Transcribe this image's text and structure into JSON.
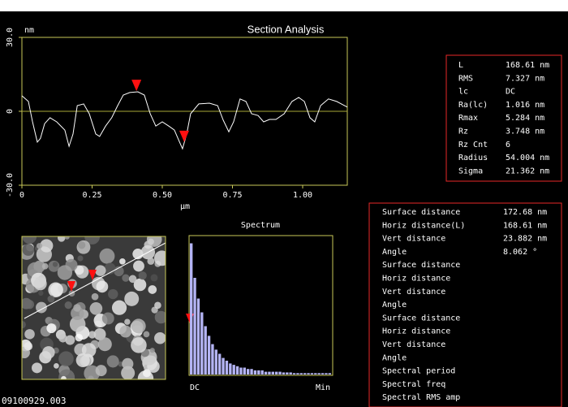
{
  "chart_data": [
    {
      "type": "line",
      "title": "Section Analysis",
      "y_unit": "nm",
      "x_label": "µm",
      "color": "#ffffff",
      "zero_line_color": "#a8a838",
      "x": [
        0,
        0.023,
        0.038,
        0.055,
        0.066,
        0.081,
        0.1,
        0.124,
        0.153,
        0.168,
        0.182,
        0.197,
        0.22,
        0.24,
        0.263,
        0.277,
        0.298,
        0.32,
        0.341,
        0.361,
        0.384,
        0.413,
        0.436,
        0.457,
        0.477,
        0.5,
        0.523,
        0.543,
        0.558,
        0.572,
        0.587,
        0.601,
        0.63,
        0.668,
        0.697,
        0.717,
        0.737,
        0.754,
        0.777,
        0.798,
        0.818,
        0.841,
        0.861,
        0.882,
        0.905,
        0.934,
        0.962,
        0.986,
        1.006,
        1.026,
        1.043,
        1.064,
        1.092,
        1.121,
        1.159
      ],
      "values": [
        6.3,
        4,
        -4.3,
        -12.5,
        -11,
        -5,
        -2.6,
        -4.3,
        -7.6,
        -14.2,
        -9.2,
        2.3,
        3,
        -1,
        -9.2,
        -10.2,
        -6,
        -2.6,
        2.3,
        6.6,
        7.6,
        7.9,
        6.6,
        -1,
        -6,
        -4.3,
        -6,
        -7.6,
        -11.6,
        -15.2,
        -9.2,
        -1,
        3,
        3.3,
        2.3,
        -3.6,
        -8.3,
        -4.3,
        5,
        4,
        -1,
        -1.7,
        -4.3,
        -3.3,
        -3.3,
        -1,
        4,
        5.6,
        4,
        -2.6,
        -4.3,
        2.3,
        5,
        4,
        1.7
      ],
      "cursors": {
        "x": [
          0.408,
          0.578
        ],
        "values": [
          8.2,
          -12.5
        ],
        "color": "#ff1010"
      },
      "xlim": [
        0,
        1.159
      ],
      "ylim": [
        -30,
        30
      ],
      "xticks": [
        0,
        0.25,
        {
          "value": 0.5,
          "label": "0.50"
        },
        0.75,
        {
          "value": 1,
          "label": "1.00"
        }
      ],
      "yticks": [
        {
          "value": -30,
          "label": "-30.0"
        },
        0,
        {
          "value": 30,
          "label": "30.0"
        }
      ]
    },
    {
      "type": "bar",
      "title": "Spectrum",
      "x_start_label": "DC",
      "x_end_label": "Min",
      "color": "#b4b4f4",
      "values": [
        95,
        70,
        55,
        45,
        35,
        28,
        22,
        18,
        15,
        12,
        10,
        8,
        7,
        6,
        5,
        5,
        4,
        4,
        3,
        3,
        3,
        2,
        2,
        2,
        2,
        2,
        1.5,
        1.5,
        1.5,
        1,
        1,
        1,
        1,
        1,
        1,
        1,
        1,
        1,
        1,
        1
      ],
      "ylim": [
        0,
        100
      ]
    }
  ],
  "roughness": {
    "color": "#e82828",
    "rows": [
      [
        "L",
        "168.61 nm"
      ],
      [
        "RMS",
        "7.327 nm"
      ],
      [
        "lc",
        "DC"
      ],
      [
        "Ra(lc)",
        "1.016 nm"
      ],
      [
        "Rmax",
        "5.284 nm"
      ],
      [
        "Rz",
        "3.748 nm"
      ],
      [
        "Rz Cnt",
        "6"
      ],
      [
        "Radius",
        "54.004 nm"
      ],
      [
        "Sigma",
        "21.362 nm"
      ]
    ]
  },
  "distances": {
    "groups": [
      {
        "color": "#e82828",
        "rows": [
          [
            "Surface distance",
            "172.68 nm"
          ],
          [
            "Horiz distance(L)",
            "168.61 nm"
          ],
          [
            "Vert distance",
            "23.882 nm"
          ],
          [
            "Angle",
            "8.062 °"
          ]
        ]
      },
      {
        "color": "#40d040",
        "rows": [
          [
            "Surface distance"
          ],
          [
            "Horiz distance"
          ],
          [
            "Vert distance"
          ],
          [
            "Angle"
          ]
        ]
      },
      {
        "color": "#ffffff",
        "rows": [
          [
            "Surface distance"
          ],
          [
            "Horiz distance"
          ],
          [
            "Vert distance"
          ],
          [
            "Angle"
          ]
        ]
      },
      {
        "color": "#e82828",
        "rows": [
          [
            "Spectral period"
          ],
          [
            "Spectral freq"
          ],
          [
            "Spectral RMS amp"
          ]
        ]
      }
    ]
  },
  "file_name": "09100929.003"
}
